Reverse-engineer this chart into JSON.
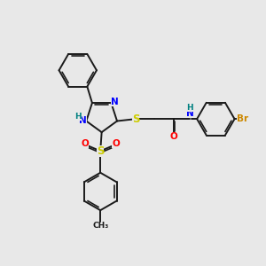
{
  "background_color": "#e8e8e8",
  "bond_color": "#1a1a1a",
  "colors": {
    "N": "#0000ff",
    "O": "#ff0000",
    "S": "#cccc00",
    "Br": "#cc8800",
    "H": "#008080",
    "C": "#1a1a1a"
  },
  "figsize": [
    3.0,
    3.0
  ],
  "dpi": 100
}
